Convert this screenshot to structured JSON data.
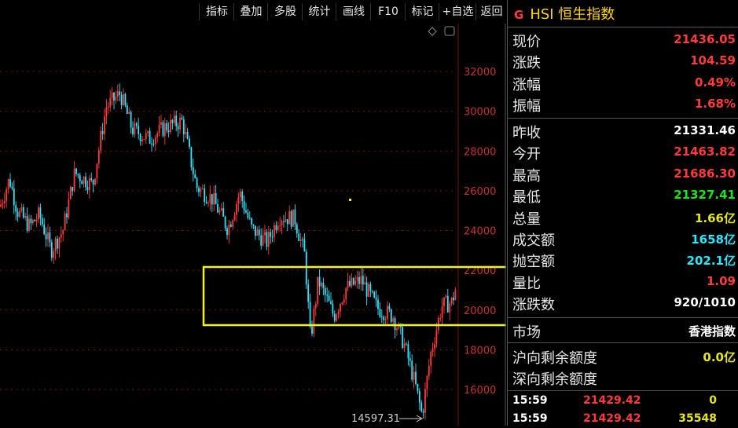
{
  "toolbar": {
    "buttons": [
      "指标",
      "叠加",
      "多股",
      "统计",
      "画线",
      "F10",
      "标记",
      "+自选",
      "返回"
    ]
  },
  "chart": {
    "price_labels": [
      "32000",
      "30000",
      "28000",
      "26000",
      "24000",
      "22000",
      "20000",
      "18000",
      "16000"
    ],
    "price_values": [
      32000,
      30000,
      28000,
      26000,
      24000,
      22000,
      20000,
      18000,
      16000
    ],
    "low_label": "14597.31",
    "colors": {
      "up": "#ff3b3b",
      "down": "#2ee6ff",
      "highlight": "#f5f500"
    }
  },
  "panel": {
    "badge": "G",
    "title": "HSI 恒生指数",
    "stats_top": [
      {
        "label": "现价",
        "value": "21436.05",
        "color": "red"
      },
      {
        "label": "涨跌",
        "value": "104.59",
        "color": "red"
      },
      {
        "label": "涨幅",
        "value": "0.49%",
        "color": "red"
      },
      {
        "label": "振幅",
        "value": "1.68%",
        "color": "red"
      }
    ],
    "stats_mid": [
      {
        "label": "昨收",
        "value": "21331.46",
        "color": "white"
      },
      {
        "label": "今开",
        "value": "21463.82",
        "color": "red"
      },
      {
        "label": "最高",
        "value": "21686.30",
        "color": "red"
      },
      {
        "label": "最低",
        "value": "21327.41",
        "color": "green"
      },
      {
        "label": "总量",
        "value": "1.66亿",
        "color": "yellow"
      },
      {
        "label": "成交额",
        "value": "1658亿",
        "color": "cyan"
      },
      {
        "label": "抛空额",
        "value": "202.1亿",
        "color": "cyan"
      },
      {
        "label": "量比",
        "value": "1.09",
        "color": "red"
      },
      {
        "label": "涨跌数",
        "value": "920/1010",
        "color": "white"
      }
    ],
    "market": {
      "label": "市场",
      "value": "香港指数"
    },
    "quota": [
      {
        "label": "沪向剩余额度",
        "value": "0.0亿",
        "color": "yellow"
      },
      {
        "label": "深向剩余额度",
        "value": "",
        "color": "yellow"
      }
    ],
    "trades": [
      {
        "time": "15:59",
        "price": "21429.42",
        "vol": "0",
        "vol_color": "yellow"
      },
      {
        "time": "15:59",
        "price": "21429.42",
        "vol": "35548",
        "vol_color": "yellow"
      }
    ]
  }
}
